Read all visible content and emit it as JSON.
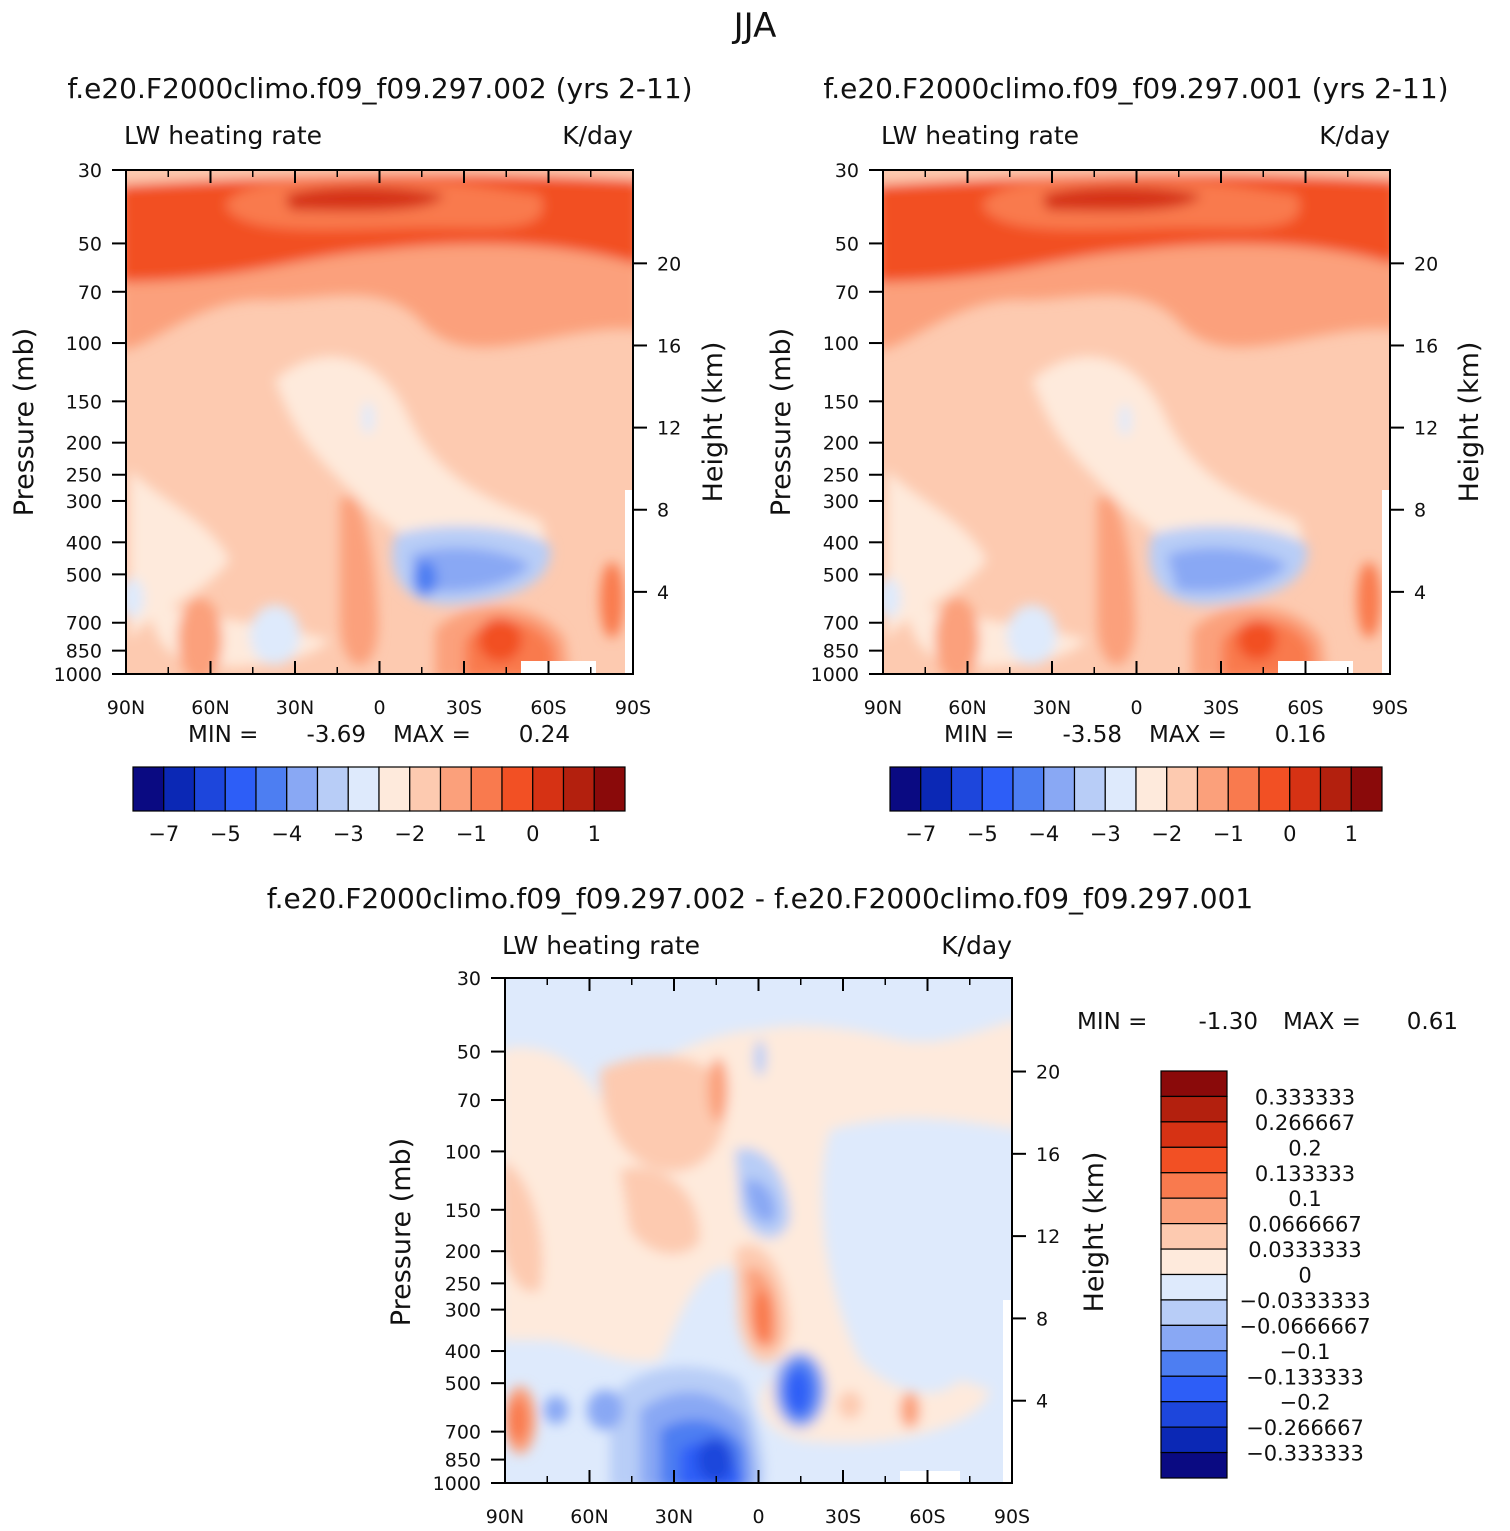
{
  "page_title": "JJA",
  "chart_data": [
    {
      "type": "heatmap",
      "id": "left",
      "case_title": "f.e20.F2000climo.f09_f09.297.002 (yrs 2-11)",
      "variable": "LW heating rate",
      "units": "K/day",
      "ylabel": "Pressure (mb)",
      "ylabel_right": "Height (km)",
      "x_ticks": [
        "90N",
        "60N",
        "30N",
        "0",
        "30S",
        "60S",
        "90S"
      ],
      "x_values": [
        90,
        60,
        30,
        0,
        -30,
        -60,
        -90
      ],
      "pressure_ticks": [
        30,
        50,
        70,
        100,
        150,
        200,
        250,
        300,
        400,
        500,
        700,
        850,
        1000
      ],
      "height_ticks": [
        20,
        16,
        12,
        8,
        4
      ],
      "ylim": [
        30,
        1000
      ],
      "min_label": "MIN =",
      "min_value": "-3.69",
      "max_label": "MAX =",
      "max_value": "0.24",
      "colorbar_labels": [
        "-7",
        "-5",
        "-4",
        "-3",
        "-2",
        "-1",
        "0",
        "1"
      ],
      "colorbar_colors": [
        "#0a0a82",
        "#0b28b5",
        "#1d46dc",
        "#2d5ef7",
        "#4d7ef2",
        "#89a8f4",
        "#b8cdf7",
        "#deeafc",
        "#feeadc",
        "#fdcab0",
        "#fba07b",
        "#f97a4e",
        "#f25024",
        "#d63214",
        "#b3200e",
        "#8a0a0a"
      ]
    },
    {
      "type": "heatmap",
      "id": "right",
      "case_title": "f.e20.F2000climo.f09_f09.297.001 (yrs 2-11)",
      "variable": "LW heating rate",
      "units": "K/day",
      "ylabel": "Pressure (mb)",
      "ylabel_right": "Height (km)",
      "x_ticks": [
        "90N",
        "60N",
        "30N",
        "0",
        "30S",
        "60S",
        "90S"
      ],
      "x_values": [
        90,
        60,
        30,
        0,
        -30,
        -60,
        -90
      ],
      "pressure_ticks": [
        30,
        50,
        70,
        100,
        150,
        200,
        250,
        300,
        400,
        500,
        700,
        850,
        1000
      ],
      "height_ticks": [
        20,
        16,
        12,
        8,
        4
      ],
      "ylim": [
        30,
        1000
      ],
      "min_label": "MIN =",
      "min_value": "-3.58",
      "max_label": "MAX =",
      "max_value": "0.16",
      "colorbar_labels": [
        "-7",
        "-5",
        "-4",
        "-3",
        "-2",
        "-1",
        "0",
        "1"
      ],
      "colorbar_colors": [
        "#0a0a82",
        "#0b28b5",
        "#1d46dc",
        "#2d5ef7",
        "#4d7ef2",
        "#89a8f4",
        "#b8cdf7",
        "#deeafc",
        "#feeadc",
        "#fdcab0",
        "#fba07b",
        "#f97a4e",
        "#f25024",
        "#d63214",
        "#b3200e",
        "#8a0a0a"
      ]
    },
    {
      "type": "heatmap",
      "id": "diff",
      "case_title": "f.e20.F2000climo.f09_f09.297.002 - f.e20.F2000climo.f09_f09.297.001",
      "variable": "LW heating rate",
      "units": "K/day",
      "ylabel": "Pressure (mb)",
      "ylabel_right": "Height (km)",
      "x_ticks": [
        "90N",
        "60N",
        "30N",
        "0",
        "30S",
        "60S",
        "90S"
      ],
      "x_values": [
        90,
        60,
        30,
        0,
        -30,
        -60,
        -90
      ],
      "pressure_ticks": [
        30,
        50,
        70,
        100,
        150,
        200,
        250,
        300,
        400,
        500,
        700,
        850,
        1000
      ],
      "height_ticks": [
        20,
        16,
        12,
        8,
        4
      ],
      "ylim": [
        30,
        1000
      ],
      "min_label": "MIN =",
      "min_value": "-1.30",
      "max_label": "MAX =",
      "max_value": "0.61",
      "colorbar_labels": [
        "0.333333",
        "0.266667",
        "0.2",
        "0.133333",
        "0.1",
        "0.0666667",
        "0.0333333",
        "0",
        "-0.0333333",
        "-0.0666667",
        "-0.1",
        "-0.133333",
        "-0.2",
        "-0.266667",
        "-0.333333"
      ],
      "colorbar_colors": [
        "#8a0a0a",
        "#b3200e",
        "#d63214",
        "#f25024",
        "#f97a4e",
        "#fba07b",
        "#fdcab0",
        "#feeadc",
        "#deeafc",
        "#b8cdf7",
        "#89a8f4",
        "#4d7ef2",
        "#2d5ef7",
        "#1d46dc",
        "#0b28b5",
        "#0a0a82"
      ]
    }
  ]
}
